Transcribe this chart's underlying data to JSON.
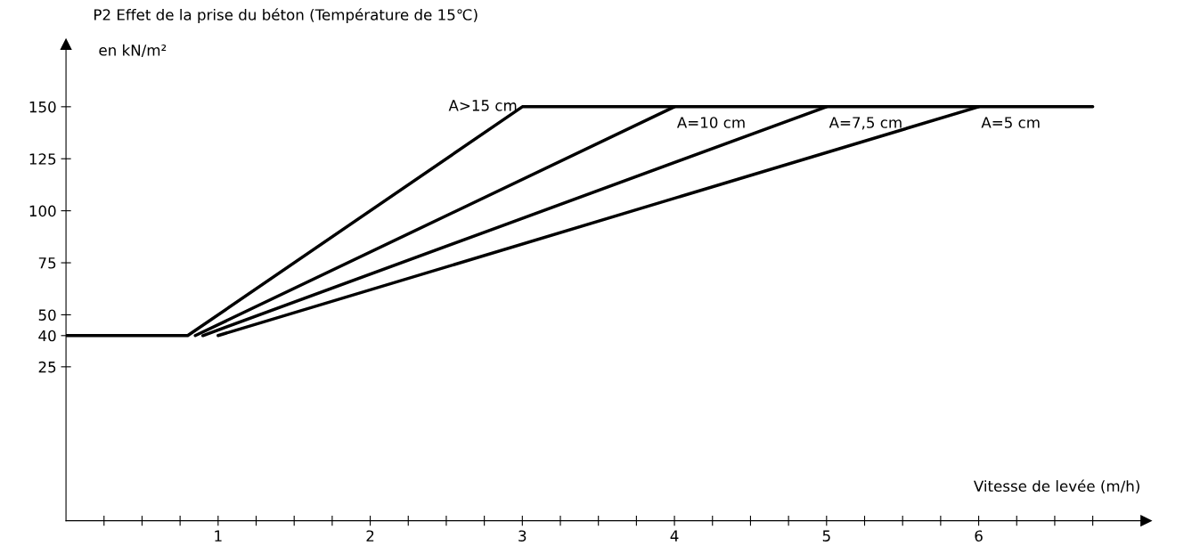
{
  "chart_data": {
    "type": "line",
    "title": "P2 Effet de la prise du béton (Température de 15℃)",
    "ylabel": "en kN/m²",
    "xlabel": "Vitesse de levée (m/h)",
    "series": [
      {
        "name": "A>15 cm",
        "color": "#000000",
        "x": [
          0,
          0.8,
          3,
          6.75
        ],
        "values": [
          40,
          40,
          150,
          150
        ]
      },
      {
        "name": "A=10 cm",
        "color": "#000000",
        "x": [
          0.85,
          4
        ],
        "values": [
          40,
          150
        ]
      },
      {
        "name": "A=7,5 cm",
        "color": "#000000",
        "x": [
          0.9,
          5
        ],
        "values": [
          40,
          150
        ]
      },
      {
        "name": "A=5 cm",
        "color": "#000000",
        "x": [
          1,
          6
        ],
        "values": [
          40,
          150
        ]
      }
    ],
    "xlim": [
      0,
      7.1
    ],
    "ylim": [
      -49,
      180
    ],
    "xticks": [
      {
        "value": 0.25,
        "label": null
      },
      {
        "value": 0.5,
        "label": null
      },
      {
        "value": 0.75,
        "label": null
      },
      1,
      {
        "value": 1.25,
        "label": null
      },
      {
        "value": 1.5,
        "label": null
      },
      {
        "value": 1.75,
        "label": null
      },
      2,
      {
        "value": 2.25,
        "label": null
      },
      {
        "value": 2.5,
        "label": null
      },
      {
        "value": 2.75,
        "label": null
      },
      3,
      {
        "value": 3.25,
        "label": null
      },
      {
        "value": 3.5,
        "label": null
      },
      {
        "value": 3.75,
        "label": null
      },
      4,
      {
        "value": 4.25,
        "label": null
      },
      {
        "value": 4.5,
        "label": null
      },
      {
        "value": 4.75,
        "label": null
      },
      5,
      {
        "value": 5.25,
        "label": null
      },
      {
        "value": 5.5,
        "label": null
      },
      {
        "value": 5.75,
        "label": null
      },
      6,
      {
        "value": 6.25,
        "label": null
      },
      {
        "value": 6.5,
        "label": null
      },
      {
        "value": 6.75,
        "label": null
      }
    ],
    "yticks": [
      25,
      40,
      50,
      75,
      100,
      125,
      150
    ],
    "grid": false,
    "legend": false,
    "marker": "none",
    "line_style": "solid"
  }
}
